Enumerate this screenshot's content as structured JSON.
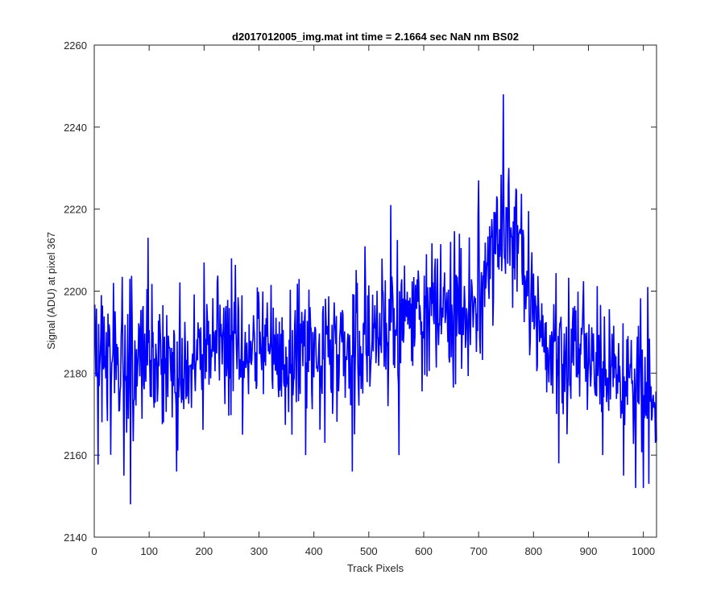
{
  "chart_data": {
    "type": "line",
    "title": "d2017012005_img.mat int time = 2.1664 sec  NaN nm BS02",
    "xlabel": "Track Pixels",
    "ylabel": "Signal (ADU) at pixel 367",
    "xlim": [
      0,
      1024
    ],
    "ylim": [
      2140,
      2260
    ],
    "xticks": [
      0,
      100,
      200,
      300,
      400,
      500,
      600,
      700,
      800,
      900,
      1000
    ],
    "yticks": [
      2140,
      2160,
      2180,
      2200,
      2220,
      2240,
      2260
    ],
    "grid": false,
    "series": [
      {
        "name": "Signal",
        "color": "#0000ff",
        "x_start": 1,
        "x_step": 1,
        "envelope_x": [
          0,
          20,
          40,
          60,
          80,
          100,
          150,
          200,
          300,
          400,
          480,
          520,
          560,
          600,
          640,
          680,
          700,
          720,
          740,
          760,
          780,
          800,
          820,
          860,
          900,
          950,
          1000,
          1024
        ],
        "envelope_mean": [
          2185,
          2185,
          2184,
          2180,
          2183,
          2186,
          2184,
          2185,
          2186,
          2185,
          2187,
          2192,
          2194,
          2195,
          2195,
          2196,
          2198,
          2208,
          2214,
          2214,
          2212,
          2196,
          2188,
          2185,
          2183,
          2180,
          2177,
          2176
        ],
        "noise_std": 8.5,
        "spikes": [
          {
            "x": 14,
            "y": 2168
          },
          {
            "x": 35,
            "y": 2202
          },
          {
            "x": 54,
            "y": 2155
          },
          {
            "x": 66,
            "y": 2148
          },
          {
            "x": 98,
            "y": 2213
          },
          {
            "x": 150,
            "y": 2156
          },
          {
            "x": 200,
            "y": 2207
          },
          {
            "x": 250,
            "y": 2208
          },
          {
            "x": 270,
            "y": 2165
          },
          {
            "x": 360,
            "y": 2165
          },
          {
            "x": 385,
            "y": 2160
          },
          {
            "x": 420,
            "y": 2163
          },
          {
            "x": 470,
            "y": 2156
          },
          {
            "x": 540,
            "y": 2221
          },
          {
            "x": 555,
            "y": 2160
          },
          {
            "x": 605,
            "y": 2209
          },
          {
            "x": 700,
            "y": 2227
          },
          {
            "x": 745,
            "y": 2248
          },
          {
            "x": 768,
            "y": 2225
          },
          {
            "x": 790,
            "y": 2205
          },
          {
            "x": 846,
            "y": 2158
          },
          {
            "x": 926,
            "y": 2160
          },
          {
            "x": 964,
            "y": 2155
          },
          {
            "x": 986,
            "y": 2152
          },
          {
            "x": 1000,
            "y": 2152
          },
          {
            "x": 1008,
            "y": 2201
          },
          {
            "x": 1010,
            "y": 2153
          },
          {
            "x": 1022,
            "y": 2163
          }
        ]
      }
    ]
  }
}
